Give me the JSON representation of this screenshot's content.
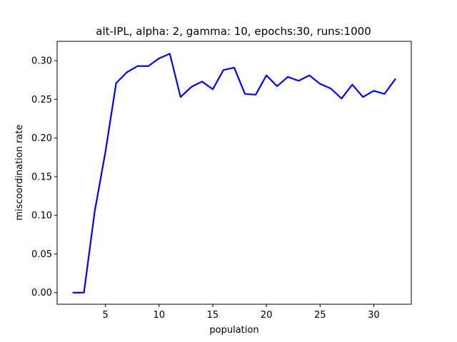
{
  "chart_data": {
    "type": "line",
    "title": "alt-IPL, alpha: 2, gamma: 10, epochs:30, runs:1000",
    "xlabel": "population",
    "ylabel": "miscoordination rate",
    "xlim": [
      0.5,
      33.5
    ],
    "ylim": [
      -0.015,
      0.325
    ],
    "xticks": [
      5,
      10,
      15,
      20,
      25,
      30
    ],
    "yticks": [
      0.0,
      0.05,
      0.1,
      0.15,
      0.2,
      0.25,
      0.3
    ],
    "grid": false,
    "series": [
      {
        "color": "#0000ff",
        "x": [
          2,
          3,
          4,
          5,
          6,
          7,
          8,
          9,
          10,
          11,
          12,
          13,
          14,
          15,
          16,
          17,
          18,
          19,
          20,
          21,
          22,
          23,
          24,
          25,
          26,
          27,
          28,
          29,
          30,
          31,
          32
        ],
        "y": [
          0.0,
          0.0,
          0.105,
          0.182,
          0.271,
          0.285,
          0.293,
          0.293,
          0.303,
          0.309,
          0.253,
          0.266,
          0.273,
          0.263,
          0.288,
          0.291,
          0.257,
          0.256,
          0.281,
          0.267,
          0.279,
          0.274,
          0.281,
          0.27,
          0.264,
          0.251,
          0.269,
          0.253,
          0.261,
          0.257,
          0.276
        ]
      }
    ]
  }
}
